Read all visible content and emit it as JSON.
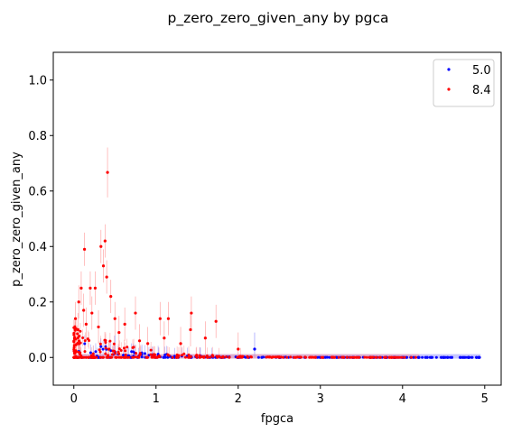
{
  "chart_data": {
    "type": "scatter",
    "title": "p_zero_zero_given_any by pgca",
    "xlabel": "fpgca",
    "ylabel": "p_zero_zero_given_any",
    "xlim": [
      -0.25,
      5.2
    ],
    "ylim": [
      -0.1,
      1.1
    ],
    "xticks": [
      0,
      1,
      2,
      3,
      4,
      5
    ],
    "yticks": [
      0.0,
      0.2,
      0.4,
      0.6,
      0.8,
      1.0
    ],
    "grid": false,
    "legend_position": "top-right",
    "series": [
      {
        "name": "5.0",
        "color": "#0000ff",
        "errorbar_color": "#8080ff",
        "x_range": [
          0,
          4.95
        ],
        "points": [
          [
            0.05,
            0.0
          ],
          [
            0.1,
            0.0
          ],
          [
            0.2,
            0.0
          ],
          [
            0.3,
            0.0
          ],
          [
            0.5,
            0.02
          ],
          [
            0.7,
            0.0
          ],
          [
            1.0,
            0.0
          ],
          [
            1.2,
            0.0
          ],
          [
            1.5,
            0.0
          ],
          [
            1.8,
            0.0
          ],
          [
            2.0,
            0.0
          ],
          [
            2.2,
            0.03
          ],
          [
            2.5,
            0.0
          ],
          [
            2.75,
            0.0
          ],
          [
            3.0,
            0.0
          ],
          [
            3.2,
            0.0
          ],
          [
            3.4,
            0.0
          ],
          [
            3.6,
            0.0
          ],
          [
            3.8,
            0.0
          ],
          [
            3.9,
            0.0
          ],
          [
            4.0,
            0.0
          ],
          [
            4.1,
            0.0
          ],
          [
            4.2,
            0.0
          ],
          [
            4.3,
            0.0
          ],
          [
            4.35,
            0.0
          ],
          [
            4.5,
            0.0
          ],
          [
            4.55,
            0.0
          ],
          [
            4.6,
            0.0
          ],
          [
            4.7,
            0.0
          ],
          [
            4.75,
            0.0
          ],
          [
            4.8,
            0.0
          ],
          [
            4.9,
            0.0
          ],
          [
            4.93,
            0.0
          ]
        ]
      },
      {
        "name": "8.4",
        "color": "#ff0000",
        "errorbar_color": "#ff9090",
        "x_range": [
          0,
          4.2
        ],
        "points": [
          [
            0.41,
            0.667
          ],
          [
            0.38,
            0.42
          ],
          [
            0.13,
            0.39
          ],
          [
            0.33,
            0.4
          ],
          [
            0.09,
            0.25
          ],
          [
            0.2,
            0.25
          ],
          [
            0.26,
            0.25
          ],
          [
            0.36,
            0.33
          ],
          [
            0.4,
            0.29
          ],
          [
            0.45,
            0.22
          ],
          [
            0.06,
            0.2
          ],
          [
            0.12,
            0.17
          ],
          [
            0.5,
            0.14
          ],
          [
            0.62,
            0.12
          ],
          [
            0.75,
            0.16
          ],
          [
            1.05,
            0.14
          ],
          [
            1.15,
            0.14
          ],
          [
            1.43,
            0.16
          ],
          [
            1.42,
            0.1
          ],
          [
            1.6,
            0.07
          ],
          [
            1.73,
            0.13
          ],
          [
            0.02,
            0.14
          ],
          [
            0.05,
            0.1
          ],
          [
            0.15,
            0.12
          ],
          [
            0.22,
            0.16
          ],
          [
            0.3,
            0.11
          ],
          [
            0.55,
            0.09
          ],
          [
            0.8,
            0.06
          ],
          [
            0.9,
            0.05
          ],
          [
            1.1,
            0.07
          ],
          [
            1.3,
            0.05
          ],
          [
            2.0,
            0.03
          ]
        ]
      }
    ]
  }
}
